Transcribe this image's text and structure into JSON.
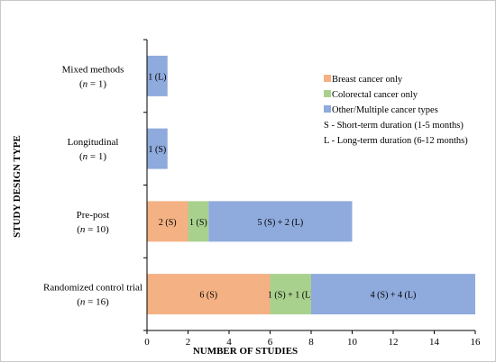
{
  "chart_data": {
    "type": "bar",
    "orientation": "horizontal",
    "stacked": true,
    "xlabel": "NUMBER OF STUDIES",
    "ylabel": "STUDY DESIGN TYPE",
    "xlim": [
      0,
      16
    ],
    "xticks": [
      "0",
      "2",
      "4",
      "6",
      "8",
      "10",
      "12",
      "14",
      "16"
    ],
    "grid": false,
    "legend_position": "right",
    "categories": [
      {
        "name": "Mixed methods",
        "n_prefix": "(",
        "n_label": "n",
        "n_suffix": " = 1)"
      },
      {
        "name": "Longitudinal",
        "n_prefix": "(",
        "n_label": "n",
        "n_suffix": " = 1)"
      },
      {
        "name": "Pre-post",
        "n_prefix": "(",
        "n_label": "n",
        "n_suffix": " = 10)"
      },
      {
        "name": "Randomized control trial",
        "n_prefix": "(",
        "n_label": "n",
        "n_suffix": " = 16)"
      }
    ],
    "series": [
      {
        "name": "Breast cancer only",
        "color": "#f4b183",
        "values": [
          0,
          0,
          2,
          6
        ],
        "labels": [
          "",
          "",
          "2 (S)",
          "6 (S)"
        ]
      },
      {
        "name": "Colorectal cancer only",
        "color": "#a9d18e",
        "values": [
          0,
          0,
          1,
          2
        ],
        "labels": [
          "",
          "",
          "1 (S)",
          "1 (S) + 1 (L)"
        ]
      },
      {
        "name": "Other/Multiple cancer types",
        "color": "#8faadc",
        "values": [
          1,
          1,
          7,
          8
        ],
        "labels": [
          "1 (L)",
          "1 (S)",
          "5 (S) + 2 (L)",
          "4 (S) + 4 (L)"
        ]
      }
    ],
    "legend_notes": [
      "S - Short-term duration (1-5 months)",
      "L - Long-term duration (6-12 months)"
    ]
  }
}
